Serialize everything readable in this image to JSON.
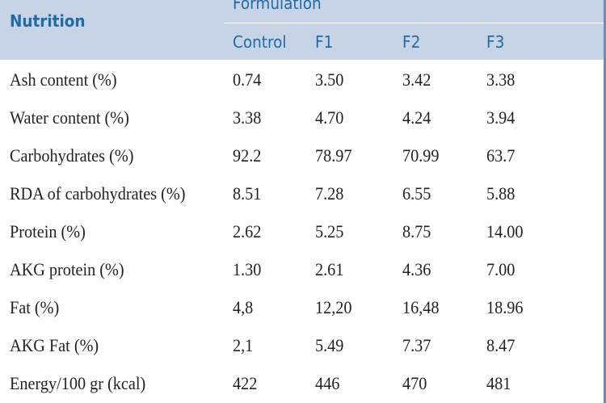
{
  "table": {
    "header": {
      "row_label": "Nutrition",
      "group_label": "Formulation",
      "columns": [
        "Control",
        "F1",
        "F2",
        "F3"
      ]
    },
    "rows": [
      {
        "label": "Ash content (%)",
        "values": [
          "0.74",
          "3.50",
          "3.42",
          "3.38"
        ]
      },
      {
        "label": "Water content (%)",
        "values": [
          "3.38",
          "4.70",
          "4.24",
          "3.94"
        ]
      },
      {
        "label": "Carbohydrates (%)",
        "values": [
          "92.2",
          "78.97",
          "70.99",
          "63.7"
        ]
      },
      {
        "label": "RDA of carbohydrates (%)",
        "values": [
          "8.51",
          "7.28",
          "6.55",
          "5.88"
        ]
      },
      {
        "label": "Protein (%)",
        "values": [
          "2.62",
          "5.25",
          "8.75",
          "14.00"
        ]
      },
      {
        "label": "AKG protein (%)",
        "values": [
          "1.30",
          "2.61",
          "4.36",
          "7.00"
        ]
      },
      {
        "label": "Fat (%)",
        "values": [
          "4,8",
          "12,20",
          "16,48",
          "18.96"
        ]
      },
      {
        "label": "AKG Fat (%)",
        "values": [
          "2,1",
          "5.49",
          "7.37",
          "8.47"
        ]
      },
      {
        "label": "Energy/100 gr (kcal)",
        "values": [
          "422",
          "446",
          "470",
          "481"
        ]
      }
    ]
  },
  "colors": {
    "header_background": "#c7d4e6",
    "header_text": "#1f6aa8",
    "body_text": "#222222"
  }
}
